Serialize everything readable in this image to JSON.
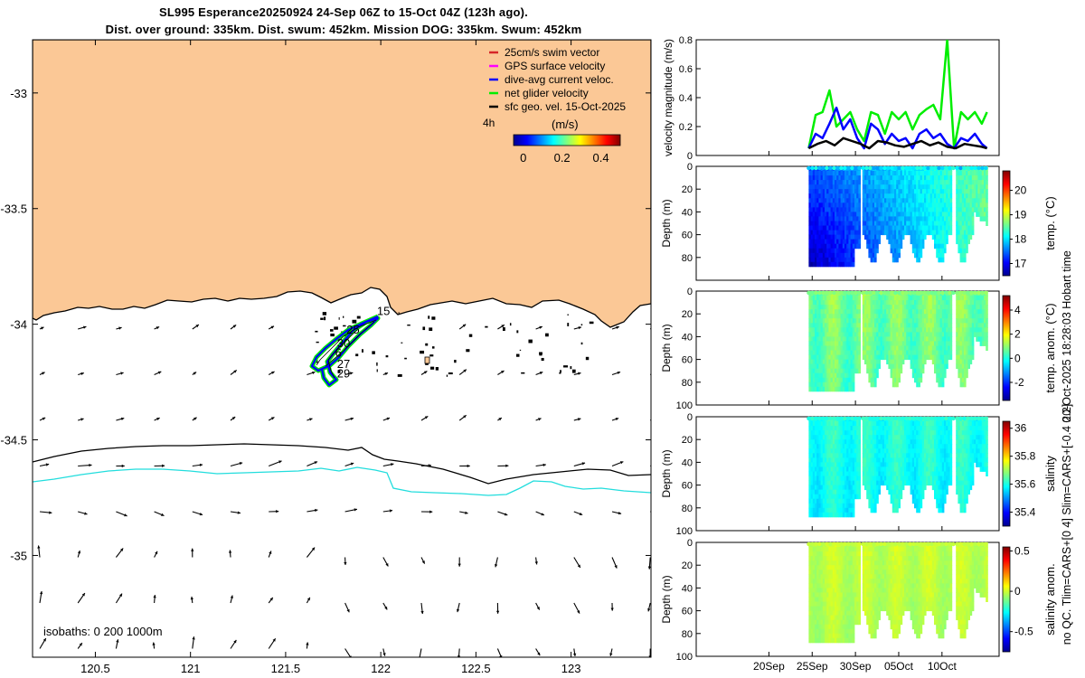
{
  "chart_data": {
    "header": {
      "line1": "SL995 Esperance20250924 24-Sep 06Z to 15-Oct 04Z (123h ago).",
      "line2": "Dist. over ground: 335km. Dist. swum: 452km. Mission DOG: 335km. Swum: 452km"
    },
    "map": {
      "type": "map",
      "xlim": [
        120.17,
        123.42
      ],
      "ylim": [
        -35.44,
        -32.77
      ],
      "xticks": [
        "120.5",
        "121",
        "121.5",
        "122",
        "122.5",
        "123"
      ],
      "xtick_values": [
        120.5,
        121,
        121.5,
        122,
        122.5,
        123
      ],
      "yticks": [
        "-33",
        "-33.5",
        "-34",
        "-34.5",
        "-35"
      ],
      "ytick_values": [
        -33,
        -33.5,
        -34,
        -34.5,
        -35
      ],
      "legend": [
        "25cm/s swim vector",
        "GPS surface velocity",
        "dive-avg current veloc.",
        "net glider velocity",
        "sfc geo. vel. 15-Oct-2025"
      ],
      "legend_colors": [
        "#d62728",
        "#ff00ff",
        "#0000ff",
        "#00ee00",
        "#000000"
      ],
      "time_label": "4h",
      "colorbar_label": "(m/s)",
      "colorbar_ticks": [
        "0",
        "0.2",
        "0.4"
      ],
      "colorbar_values": [
        0,
        0.2,
        0.4
      ],
      "colorbar_range": [
        -0.05,
        0.5
      ],
      "isobath_label": "isobaths: 0   200  1000m",
      "day_labels": [
        "15",
        "25",
        "30",
        "6",
        "27",
        "29"
      ],
      "day_label_positions": [
        [
          121.98,
          -33.96
        ],
        [
          121.82,
          -34.04
        ],
        [
          121.77,
          -34.1
        ],
        [
          121.76,
          -34.14
        ],
        [
          121.77,
          -34.19
        ],
        [
          121.77,
          -34.23
        ]
      ],
      "land_color": "#fbc896",
      "isobath_200_color": "#000000",
      "isobath_1000_color": "#22dddd"
    },
    "velocity": {
      "type": "line",
      "ylabel": "velocity magnitude (m/s)",
      "ylim": [
        0,
        0.8
      ],
      "yticks": [
        "0",
        "0.2",
        "0.4",
        "0.6",
        "0.8"
      ],
      "ytick_values": [
        0,
        0.2,
        0.4,
        0.6,
        0.8
      ],
      "xlim_days": [
        0,
        35
      ],
      "series": [
        {
          "name": "net glider velocity",
          "color": "#00ee00",
          "x": [
            13.0,
            13.8,
            14.6,
            15.4,
            16.2,
            17.0,
            17.8,
            18.6,
            19.4,
            20.2,
            21.0,
            21.8,
            22.6,
            23.4,
            24.2,
            25.0,
            25.8,
            26.6,
            27.4,
            28.2,
            29.0,
            29.8,
            30.6,
            31.4,
            32.2,
            33.0,
            33.6
          ],
          "values": [
            0.05,
            0.28,
            0.3,
            0.45,
            0.2,
            0.25,
            0.3,
            0.18,
            0.1,
            0.3,
            0.28,
            0.15,
            0.3,
            0.25,
            0.3,
            0.18,
            0.28,
            0.32,
            0.35,
            0.25,
            0.8,
            0.05,
            0.3,
            0.25,
            0.3,
            0.22,
            0.3
          ]
        },
        {
          "name": "dive-avg current veloc.",
          "color": "#0000ff",
          "x": [
            13.0,
            13.8,
            14.6,
            15.4,
            16.2,
            17.0,
            17.8,
            18.6,
            19.4,
            20.2,
            21.0,
            21.8,
            22.6,
            23.4,
            24.2,
            25.0,
            25.8,
            26.6,
            27.4,
            28.2,
            29.0,
            29.8,
            30.6,
            31.4,
            32.2,
            33.0,
            33.6
          ],
          "values": [
            0.05,
            0.15,
            0.12,
            0.22,
            0.33,
            0.18,
            0.25,
            0.12,
            0.05,
            0.22,
            0.18,
            0.08,
            0.15,
            0.1,
            0.12,
            0.05,
            0.15,
            0.18,
            0.12,
            0.15,
            0.08,
            0.05,
            0.12,
            0.1,
            0.15,
            0.08,
            0.05
          ]
        },
        {
          "name": "sfc geo. vel.",
          "color": "#000000",
          "x": [
            13.0,
            14.0,
            15.0,
            16.0,
            17.0,
            18.0,
            19.0,
            20.0,
            21.0,
            22.0,
            23.0,
            24.0,
            25.0,
            26.0,
            27.0,
            28.0,
            29.0,
            30.0,
            31.0,
            32.0,
            33.0,
            33.6
          ],
          "values": [
            0.05,
            0.08,
            0.1,
            0.07,
            0.12,
            0.1,
            0.08,
            0.05,
            0.1,
            0.09,
            0.07,
            0.06,
            0.08,
            0.1,
            0.07,
            0.09,
            0.06,
            0.05,
            0.08,
            0.07,
            0.06,
            0.05
          ]
        }
      ]
    },
    "profiles": [
      {
        "type": "heatmap",
        "ylabel": "Depth (m)",
        "ylim": [
          0,
          100
        ],
        "yticks": [
          "0",
          "20",
          "40",
          "60",
          "80"
        ],
        "ytick_values": [
          0,
          20,
          40,
          60,
          80
        ],
        "colorbar_label": "temp. (°C)",
        "colorbar_ticks": [
          "17",
          "18",
          "19",
          "20"
        ],
        "colorbar_values": [
          17,
          18,
          19,
          20
        ],
        "crange": [
          16.5,
          20.8
        ],
        "min_value": 16.8,
        "max_value": 19.0,
        "trend": "warming"
      },
      {
        "type": "heatmap",
        "ylabel": "Depth (m)",
        "ylim": [
          0,
          100
        ],
        "yticks": [
          "0",
          "20",
          "40",
          "60",
          "80",
          "100"
        ],
        "ytick_values": [
          0,
          20,
          40,
          60,
          80,
          100
        ],
        "colorbar_label": "temp. anom. (°C)",
        "colorbar_ticks": [
          "-2",
          "0",
          "2",
          "4"
        ],
        "colorbar_values": [
          -2,
          0,
          2,
          4
        ],
        "crange": [
          -3.5,
          5.2
        ],
        "min_value": 0.0,
        "max_value": 1.6,
        "trend": "flat"
      },
      {
        "type": "heatmap",
        "ylabel": "Depth (m)",
        "ylim": [
          0,
          100
        ],
        "yticks": [
          "0",
          "20",
          "40",
          "60",
          "80",
          "100"
        ],
        "ytick_values": [
          0,
          20,
          40,
          60,
          80,
          100
        ],
        "colorbar_label": "salinity",
        "colorbar_ticks": [
          "35.4",
          "35.6",
          "35.8",
          "36"
        ],
        "colorbar_values": [
          35.4,
          35.6,
          35.8,
          36
        ],
        "crange": [
          35.3,
          36.05
        ],
        "min_value": 35.55,
        "max_value": 35.66,
        "trend": "flat"
      },
      {
        "type": "heatmap",
        "ylabel": "Depth (m)",
        "ylim": [
          0,
          100
        ],
        "yticks": [
          "0",
          "20",
          "40",
          "60",
          "80",
          "100"
        ],
        "ytick_values": [
          0,
          20,
          40,
          60,
          80,
          100
        ],
        "colorbar_label": "salinity anom.",
        "colorbar_ticks": [
          "-0.5",
          "0",
          "0.5"
        ],
        "colorbar_values": [
          -0.5,
          0,
          0.5
        ],
        "crange": [
          -0.75,
          0.55
        ],
        "min_value": -0.08,
        "max_value": 0.05,
        "trend": "flat"
      }
    ],
    "time_axis": {
      "xlim_days": [
        0,
        35
      ],
      "tick_labels": [
        "20Sep",
        "25Sep",
        "30Sep",
        "05Oct",
        "10Oct"
      ],
      "tick_days": [
        8.4,
        13.4,
        18.4,
        23.4,
        28.4
      ]
    },
    "right_labels": {
      "timestamp": "20-Oct-2025 18:28:03 Hobart time",
      "qc_note": "no QC. Tlim=CARS+[0 4] Slim=CARS+[-0.4 0.2]"
    }
  }
}
